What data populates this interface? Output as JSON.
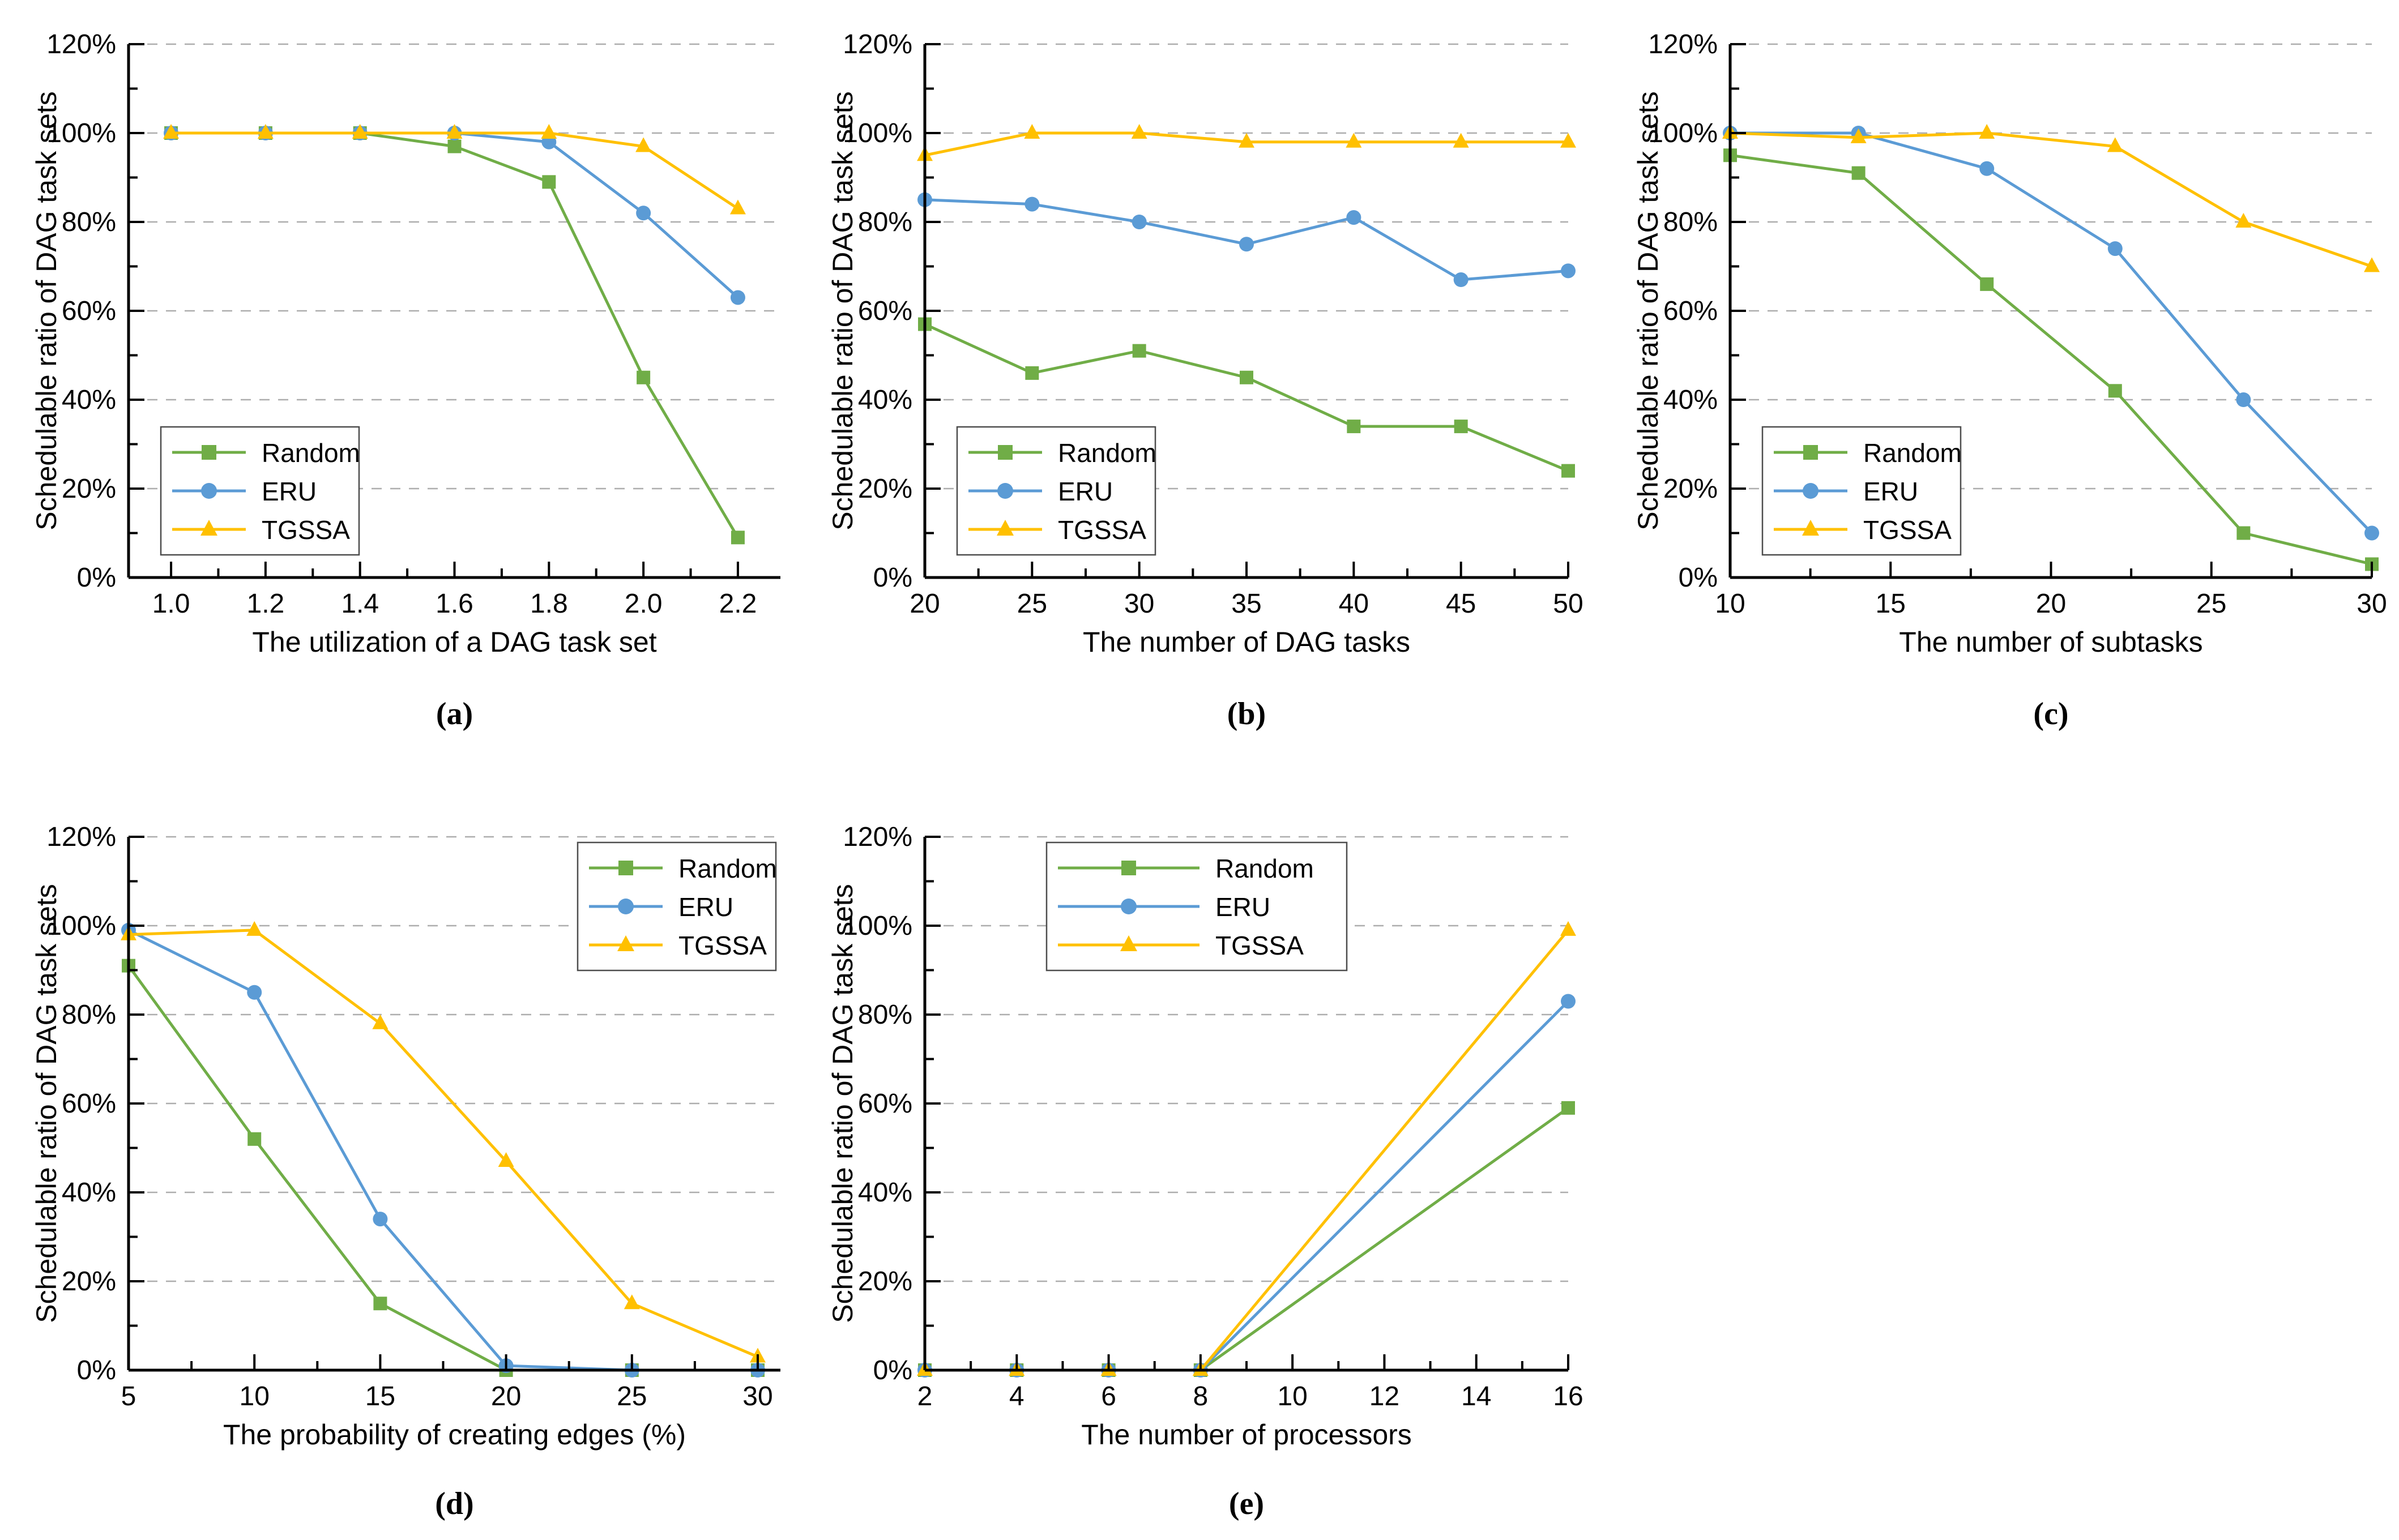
{
  "y_axis": {
    "label": "Schedulable ratio of DAG task sets",
    "min": 0,
    "max": 120,
    "major_step": 20,
    "minor_step": 10,
    "tick_labels": [
      "0%",
      "20%",
      "40%",
      "60%",
      "80%",
      "100%",
      "120%"
    ]
  },
  "series_meta": [
    {
      "name": "Random",
      "color": "#70AD47",
      "marker": "square"
    },
    {
      "name": "ERU",
      "color": "#5B9BD5",
      "marker": "circle"
    },
    {
      "name": "TGSSA",
      "color": "#FFC000",
      "marker": "triangle"
    }
  ],
  "style_colors": {
    "grid": "#ADADAD",
    "axis": "#000000",
    "legend_border": "#4D4D4D",
    "text": "#000000"
  },
  "chart_data": [
    {
      "type": "line",
      "caption": "(a)",
      "xlabel": "The utilization of a DAG task set",
      "ylabel": "Schedulable ratio of DAG task sets",
      "x_ticks": [
        1.0,
        1.2,
        1.4,
        1.6,
        1.8,
        2.0,
        2.2
      ],
      "x_tick_labels": [
        "1.0",
        "1.2",
        "1.4",
        "1.6",
        "1.8",
        "2.0",
        "2.2"
      ],
      "xlim": [
        0.91,
        2.29
      ],
      "ylim": [
        0,
        120
      ],
      "grid": true,
      "legend_position": "bottom-left",
      "x": [
        1.0,
        1.2,
        1.4,
        1.6,
        1.8,
        2.0,
        2.2
      ],
      "series": [
        {
          "name": "Random",
          "values": [
            100,
            100,
            100,
            97,
            89,
            45,
            9
          ]
        },
        {
          "name": "ERU",
          "values": [
            100,
            100,
            100,
            100,
            98,
            82,
            63
          ]
        },
        {
          "name": "TGSSA",
          "values": [
            100,
            100,
            100,
            100,
            100,
            97,
            83
          ]
        }
      ]
    },
    {
      "type": "line",
      "caption": "(b)",
      "xlabel": "The number of DAG tasks",
      "ylabel": "Schedulable ratio of DAG task sets",
      "x_ticks": [
        20,
        25,
        30,
        35,
        40,
        45,
        50
      ],
      "x_tick_labels": [
        "20",
        "25",
        "30",
        "35",
        "40",
        "45",
        "50"
      ],
      "xlim": [
        20,
        50
      ],
      "ylim": [
        0,
        120
      ],
      "grid": true,
      "legend_position": "bottom-left",
      "x": [
        20,
        25,
        30,
        35,
        40,
        45,
        50
      ],
      "series": [
        {
          "name": "Random",
          "values": [
            57,
            46,
            51,
            45,
            34,
            34,
            24
          ]
        },
        {
          "name": "ERU",
          "values": [
            85,
            84,
            80,
            75,
            81,
            67,
            69
          ]
        },
        {
          "name": "TGSSA",
          "values": [
            95,
            100,
            100,
            98,
            98,
            98,
            98
          ]
        }
      ]
    },
    {
      "type": "line",
      "caption": "(c)",
      "xlabel": "The number of subtasks",
      "ylabel": "Schedulable ratio of DAG task sets",
      "x_ticks": [
        10,
        15,
        20,
        25,
        30
      ],
      "x_tick_labels": [
        "10",
        "15",
        "20",
        "25",
        "30"
      ],
      "xlim": [
        10,
        30
      ],
      "ylim": [
        0,
        120
      ],
      "grid": true,
      "legend_position": "bottom-left",
      "x": [
        10,
        14,
        18,
        22,
        26,
        30
      ],
      "series": [
        {
          "name": "Random",
          "values": [
            95,
            91,
            66,
            42,
            10,
            3
          ]
        },
        {
          "name": "ERU",
          "values": [
            100,
            100,
            92,
            74,
            40,
            10
          ]
        },
        {
          "name": "TGSSA",
          "values": [
            100,
            99,
            100,
            97,
            80,
            70
          ]
        }
      ]
    },
    {
      "type": "line",
      "caption": "(d)",
      "xlabel": "The probability of creating edges (%)",
      "ylabel": "Schedulable ratio of DAG task sets",
      "x_ticks": [
        5,
        10,
        15,
        20,
        25,
        30
      ],
      "x_tick_labels": [
        "5",
        "10",
        "15",
        "20",
        "25",
        "30"
      ],
      "xlim": [
        5,
        30.9
      ],
      "ylim": [
        0,
        120
      ],
      "grid": true,
      "legend_position": "top-right",
      "x": [
        5,
        10,
        15,
        20,
        25,
        30
      ],
      "series": [
        {
          "name": "Random",
          "values": [
            91,
            52,
            15,
            0,
            0,
            0
          ]
        },
        {
          "name": "ERU",
          "values": [
            99,
            85,
            34,
            1,
            0,
            0
          ]
        },
        {
          "name": "TGSSA",
          "values": [
            98,
            99,
            78,
            47,
            15,
            3
          ]
        }
      ]
    },
    {
      "type": "line",
      "caption": "(e)",
      "xlabel": "The number of processors",
      "ylabel": "Schedulable ratio of DAG task sets",
      "x_ticks": [
        2,
        4,
        6,
        8,
        10,
        12,
        14,
        16
      ],
      "x_tick_labels": [
        "2",
        "4",
        "6",
        "8",
        "10",
        "12",
        "14",
        "16"
      ],
      "xlim": [
        2,
        16
      ],
      "ylim": [
        0,
        120
      ],
      "grid": true,
      "legend_position": "top-left",
      "x": [
        2,
        4,
        6,
        8,
        16
      ],
      "series": [
        {
          "name": "Random",
          "values": [
            0,
            0,
            0,
            0,
            59
          ]
        },
        {
          "name": "ERU",
          "values": [
            0,
            0,
            0,
            0,
            83
          ]
        },
        {
          "name": "TGSSA",
          "values": [
            0,
            0,
            0,
            0,
            99
          ]
        }
      ]
    }
  ]
}
